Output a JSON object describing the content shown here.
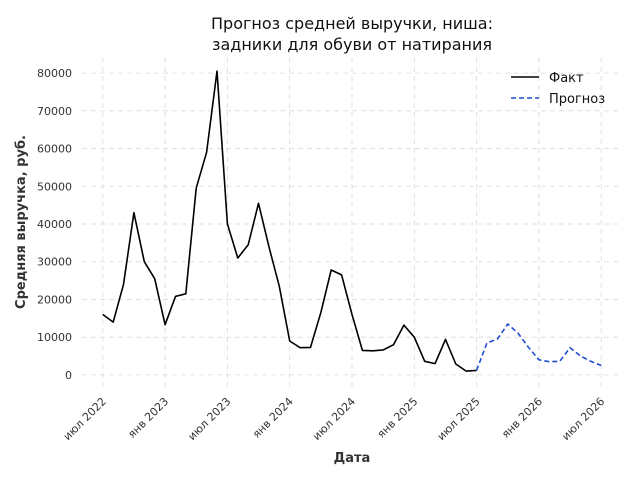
{
  "chart_data": {
    "type": "line",
    "title": [
      "Прогноз средней выручки, ниша:",
      "задники для обуви от натирания"
    ],
    "xlabel": "Дата",
    "ylabel": "Средняя выручка, руб.",
    "ylim": [
      -4000,
      84000
    ],
    "xlim": [
      "2022-05",
      "2026-09"
    ],
    "yticks": [
      0,
      10000,
      20000,
      30000,
      40000,
      50000,
      60000,
      70000,
      80000
    ],
    "xticks": [
      {
        "date": "2022-07",
        "label": "июл 2022"
      },
      {
        "date": "2023-01",
        "label": "янв 2023"
      },
      {
        "date": "2023-07",
        "label": "июл 2023"
      },
      {
        "date": "2024-01",
        "label": "янв 2024"
      },
      {
        "date": "2024-07",
        "label": "июл 2024"
      },
      {
        "date": "2025-01",
        "label": "янв 2025"
      },
      {
        "date": "2025-07",
        "label": "июл 2025"
      },
      {
        "date": "2026-01",
        "label": "янв 2026"
      },
      {
        "date": "2026-07",
        "label": "июл 2026"
      }
    ],
    "grid": true,
    "legend_position": "top-right",
    "series": [
      {
        "name": "Факт",
        "color": "#000000",
        "style": "solid",
        "x": [
          "2022-07",
          "2022-08",
          "2022-09",
          "2022-10",
          "2022-11",
          "2022-12",
          "2023-01",
          "2023-02",
          "2023-03",
          "2023-04",
          "2023-05",
          "2023-06",
          "2023-07",
          "2023-08",
          "2023-09",
          "2023-10",
          "2023-11",
          "2023-12",
          "2024-01",
          "2024-02",
          "2024-03",
          "2024-04",
          "2024-05",
          "2024-06",
          "2024-07",
          "2024-08",
          "2024-09",
          "2024-10",
          "2024-11",
          "2024-12",
          "2025-01",
          "2025-02",
          "2025-03",
          "2025-04",
          "2025-05",
          "2025-06",
          "2025-07"
        ],
        "y": [
          16000,
          14000,
          24000,
          43000,
          30000,
          25500,
          13300,
          20800,
          21500,
          49500,
          59000,
          80500,
          40000,
          31000,
          34500,
          45500,
          34000,
          23500,
          9000,
          7200,
          7300,
          16500,
          27800,
          26500,
          16000,
          6500,
          6400,
          6600,
          8000,
          13200,
          10000,
          3600,
          3000,
          9400,
          2900,
          1000,
          1200
        ]
      },
      {
        "name": "Прогноз",
        "color": "#1f4fd1",
        "style": "dashed",
        "x": [
          "2025-07",
          "2025-08",
          "2025-09",
          "2025-10",
          "2025-11",
          "2025-12",
          "2026-01",
          "2026-02",
          "2026-03",
          "2026-04",
          "2026-05",
          "2026-06",
          "2026-07"
        ],
        "y": [
          1200,
          8500,
          9500,
          13500,
          11000,
          7300,
          4000,
          3500,
          3600,
          7200,
          5000,
          3600,
          2500
        ]
      }
    ]
  }
}
